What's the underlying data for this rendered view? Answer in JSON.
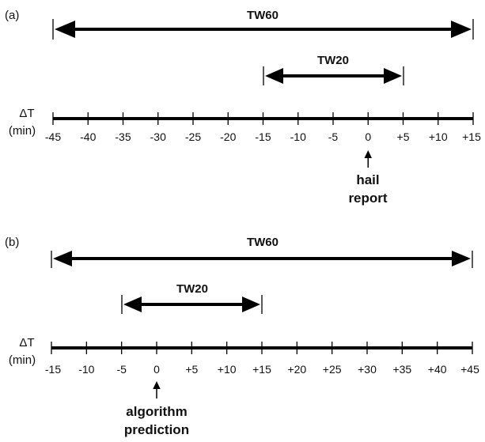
{
  "panels": [
    {
      "id": "a",
      "label": "(a)",
      "dt_label_line1": "ΔT",
      "dt_label_line2": "(min)",
      "ticks": [
        "-45",
        "-40",
        "-35",
        "-30",
        "-25",
        "-20",
        "-15",
        "-10",
        "-5",
        "0",
        "+5",
        "+10",
        "+15"
      ],
      "tick_values": [
        -45,
        -40,
        -35,
        -30,
        -25,
        -20,
        -15,
        -10,
        -5,
        0,
        5,
        10,
        15
      ],
      "windows": [
        {
          "label": "TW60",
          "start": -45,
          "end": 15
        },
        {
          "label": "TW20",
          "start": -15,
          "end": 5
        }
      ],
      "event": {
        "at": 0,
        "line1": "hail",
        "line2": "report"
      }
    },
    {
      "id": "b",
      "label": "(b)",
      "dt_label_line1": "ΔT",
      "dt_label_line2": "(min)",
      "ticks": [
        "-15",
        "-10",
        "-5",
        "0",
        "+5",
        "+10",
        "+15",
        "+20",
        "+25",
        "+30",
        "+35",
        "+40",
        "+45"
      ],
      "tick_values": [
        -15,
        -10,
        -5,
        0,
        5,
        10,
        15,
        20,
        25,
        30,
        35,
        40,
        45
      ],
      "windows": [
        {
          "label": "TW60",
          "start": -15,
          "end": 45
        },
        {
          "label": "TW20",
          "start": -5,
          "end": 15
        }
      ],
      "event": {
        "at": 0,
        "line1": "algorithm",
        "line2": "prediction"
      }
    }
  ]
}
